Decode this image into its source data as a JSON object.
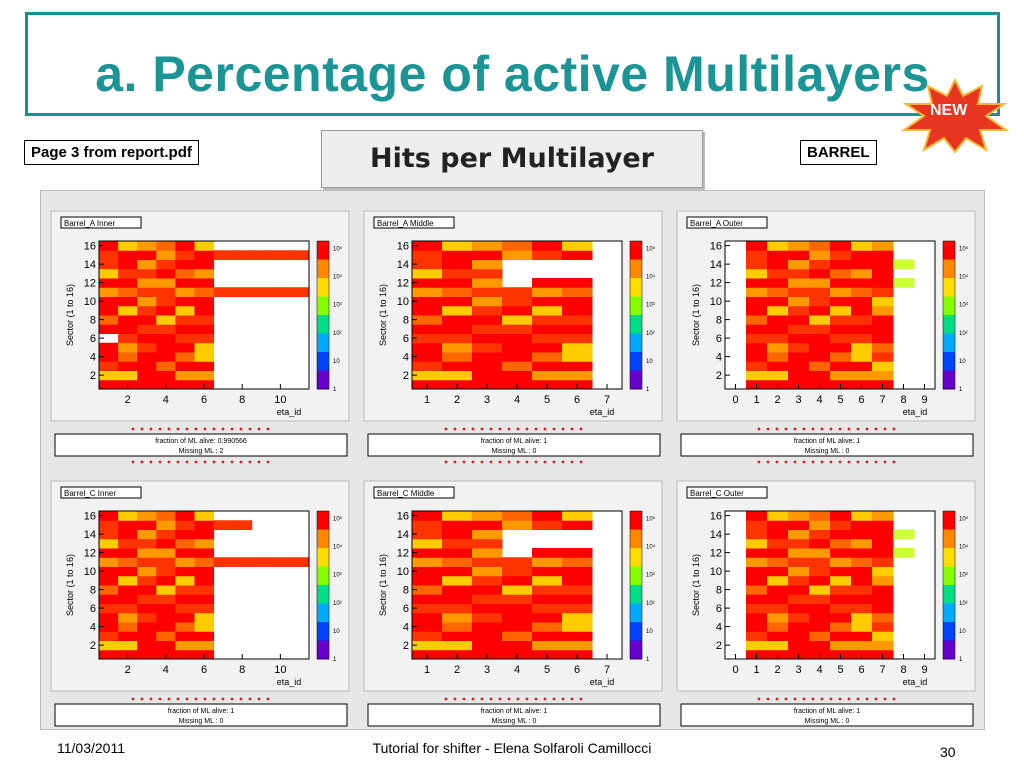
{
  "slide": {
    "title": "a. Percentage of active Multilayers",
    "badge": "NEW",
    "source_label": "Page 3 from report.pdf",
    "section_label": "BARREL",
    "plot_title": "Hits per Multilayer",
    "footer_date": "11/03/2011",
    "footer_center": "Tutorial for shifter - Elena Solfaroli Camillocci",
    "page_number": "30"
  },
  "colors": {
    "title": "#1a9494",
    "frame": "#1a8f8f",
    "badge": "#e8351f",
    "dots": "#d81e1e"
  },
  "chart_data": [
    {
      "type": "heatmap",
      "name": "Barrel_A Inner",
      "xlabel": "eta_id",
      "ylabel": "Sector (1 to 16)",
      "xlim": [
        0.5,
        11.5
      ],
      "x_ticks": [
        2,
        4,
        6,
        8,
        10
      ],
      "ylim": [
        0.5,
        16.5
      ],
      "y_ticks": [
        2,
        4,
        6,
        8,
        10,
        12,
        14,
        16
      ],
      "z_scale": "log",
      "z_ticks": [
        "1",
        "10",
        "10²",
        "10³",
        "10⁴",
        "10⁵"
      ],
      "filled_columns": 6,
      "extra_rows": [
        {
          "row": 15,
          "to": 11
        },
        {
          "row": 11,
          "to": 11
        }
      ],
      "missing_cells": [
        [
          1,
          6
        ]
      ],
      "stats": [
        "fraction of ML alive: 0.990566",
        "Missing ML : 2"
      ]
    },
    {
      "type": "heatmap",
      "name": "Barrel_A Middle",
      "xlabel": "eta_id",
      "ylabel": "Sector (1 to 16)",
      "xlim": [
        0.5,
        7.5
      ],
      "x_ticks": [
        1,
        2,
        3,
        4,
        5,
        6,
        7
      ],
      "ylim": [
        0.5,
        16.5
      ],
      "y_ticks": [
        2,
        4,
        6,
        8,
        10,
        12,
        14,
        16
      ],
      "z_scale": "log",
      "z_ticks": [
        "1",
        "10",
        "10²",
        "10³",
        "10⁴",
        "10⁵"
      ],
      "filled_columns": 6,
      "missing_cells": [
        [
          4,
          12
        ],
        [
          4,
          13
        ],
        [
          5,
          13
        ],
        [
          6,
          13
        ],
        [
          4,
          14
        ],
        [
          5,
          14
        ],
        [
          6,
          14
        ]
      ],
      "stats": [
        "fraction of ML alive: 1",
        "Missing ML : 0"
      ]
    },
    {
      "type": "heatmap",
      "name": "Barrel_A Outer",
      "xlabel": "eta_id",
      "ylabel": "Sector (1 to 16)",
      "xlim": [
        -0.5,
        9.5
      ],
      "x_ticks": [
        0,
        1,
        2,
        3,
        4,
        5,
        6,
        7,
        8,
        9
      ],
      "ylim": [
        0.5,
        16.5
      ],
      "y_ticks": [
        2,
        4,
        6,
        8,
        10,
        12,
        14,
        16
      ],
      "z_scale": "log",
      "z_ticks": [
        "1",
        "10",
        "10²",
        "10³",
        "10⁴",
        "10⁵"
      ],
      "filled_columns": 7,
      "first_column": 1,
      "extra_rows": [
        {
          "row": 14,
          "to": 8
        },
        {
          "row": 12,
          "to": 8
        }
      ],
      "stats": [
        "fraction of ML alive: 1",
        "Missing ML : 0"
      ]
    },
    {
      "type": "heatmap",
      "name": "Barrel_C Inner",
      "xlabel": "eta_id",
      "ylabel": "Sector (1 to 16)",
      "xlim": [
        0.5,
        11.5
      ],
      "x_ticks": [
        2,
        4,
        6,
        8,
        10
      ],
      "ylim": [
        0.5,
        16.5
      ],
      "y_ticks": [
        2,
        4,
        6,
        8,
        10,
        12,
        14,
        16
      ],
      "z_scale": "log",
      "z_ticks": [
        "1",
        "10",
        "10²",
        "10³",
        "10⁴",
        "10⁵"
      ],
      "filled_columns": 6,
      "extra_rows": [
        {
          "row": 15,
          "to": 8
        },
        {
          "row": 11,
          "to": 11
        }
      ],
      "stats": [
        "fraction of ML alive: 1",
        "Missing ML : 0"
      ]
    },
    {
      "type": "heatmap",
      "name": "Barrel_C Middle",
      "xlabel": "eta_id",
      "ylabel": "Sector (1 to 16)",
      "xlim": [
        0.5,
        7.5
      ],
      "x_ticks": [
        1,
        2,
        3,
        4,
        5,
        6,
        7
      ],
      "ylim": [
        0.5,
        16.5
      ],
      "y_ticks": [
        2,
        4,
        6,
        8,
        10,
        12,
        14,
        16
      ],
      "z_scale": "log",
      "z_ticks": [
        "1",
        "10",
        "10²",
        "10³",
        "10⁴",
        "10⁵"
      ],
      "filled_columns": 6,
      "missing_cells": [
        [
          4,
          12
        ],
        [
          4,
          13
        ],
        [
          5,
          13
        ],
        [
          6,
          13
        ],
        [
          4,
          14
        ],
        [
          5,
          14
        ],
        [
          6,
          14
        ]
      ],
      "stats": [
        "fraction of ML alive: 1",
        "Missing ML : 0"
      ]
    },
    {
      "type": "heatmap",
      "name": "Barrel_C Outer",
      "xlabel": "eta_id",
      "ylabel": "Sector (1 to 16)",
      "xlim": [
        -0.5,
        9.5
      ],
      "x_ticks": [
        0,
        1,
        2,
        3,
        4,
        5,
        6,
        7,
        8,
        9
      ],
      "ylim": [
        0.5,
        16.5
      ],
      "y_ticks": [
        2,
        4,
        6,
        8,
        10,
        12,
        14,
        16
      ],
      "z_scale": "log",
      "z_ticks": [
        "1",
        "10",
        "10²",
        "10³",
        "10⁴",
        "10⁵"
      ],
      "filled_columns": 7,
      "first_column": 1,
      "extra_rows": [
        {
          "row": 14,
          "to": 8
        },
        {
          "row": 12,
          "to": 8
        }
      ],
      "stats": [
        "fraction of ML alive: 1",
        "Missing ML : 0"
      ]
    }
  ]
}
